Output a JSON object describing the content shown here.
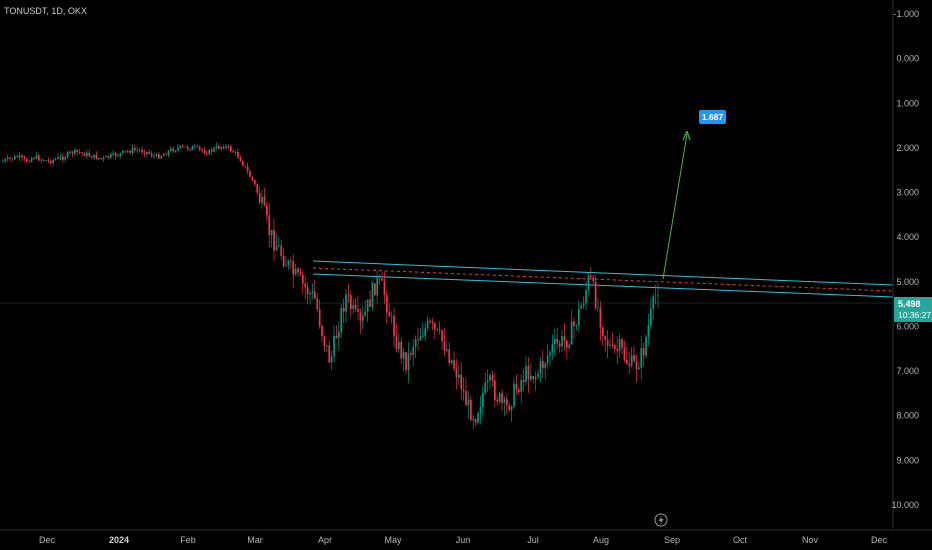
{
  "header": {
    "symbol": "TONUSDT, 1D, OKX"
  },
  "chart_data": {
    "type": "candlestick",
    "y_axis": {
      "ticks": [
        "-1.000",
        "0.000",
        "1.000",
        "2.000",
        "3.000",
        "4.000",
        "5.000",
        "6.000",
        "7.000",
        "8.000",
        "9.000",
        "10.000"
      ],
      "range": [
        -1.0,
        10.0
      ],
      "inverted": true
    },
    "x_axis": {
      "ticks": [
        {
          "label": "Dec",
          "bold": false
        },
        {
          "label": "2024",
          "bold": true
        },
        {
          "label": "Feb",
          "bold": false
        },
        {
          "label": "Mar",
          "bold": false
        },
        {
          "label": "Apr",
          "bold": false
        },
        {
          "label": "May",
          "bold": false
        },
        {
          "label": "Jun",
          "bold": false
        },
        {
          "label": "Jul",
          "bold": false
        },
        {
          "label": "Aug",
          "bold": false
        },
        {
          "label": "Sep",
          "bold": false
        },
        {
          "label": "Oct",
          "bold": false
        },
        {
          "label": "Nov",
          "bold": false
        },
        {
          "label": "Dec",
          "bold": false
        }
      ]
    },
    "price_path": [
      2.3,
      2.25,
      2.2,
      2.3,
      2.2,
      2.25,
      2.3,
      2.25,
      2.2,
      2.1,
      2.1,
      2.15,
      2.2,
      2.25,
      2.2,
      2.15,
      2.1,
      2.05,
      2.05,
      2.1,
      2.2,
      2.15,
      2.05,
      2.0,
      2.0,
      2.0,
      2.05,
      2.1,
      2.0,
      1.95,
      2.05,
      2.2,
      2.5,
      2.8,
      3.3,
      3.9,
      4.2,
      4.5,
      4.8,
      5.0,
      5.2,
      5.4,
      6.2,
      6.8,
      6.0,
      5.3,
      5.7,
      6.0,
      5.5,
      5.0,
      5.2,
      5.9,
      6.5,
      6.8,
      6.3,
      6.1,
      6.0,
      6.2,
      6.4,
      6.8,
      7.2,
      7.8,
      8.0,
      7.5,
      7.3,
      7.6,
      7.9,
      7.5,
      7.2,
      7.0,
      7.1,
      6.8,
      6.5,
      6.4,
      6.3,
      6.0,
      5.5,
      4.9,
      5.5,
      6.2,
      6.6,
      6.5,
      6.8,
      6.9,
      6.6,
      5.8,
      5.1
    ],
    "legend_note": "price-axis values increase downward (inverted scale)",
    "last_price": {
      "value": 5.498,
      "label": "5.498",
      "countdown": "10:36:27"
    },
    "target": {
      "value": 1.687,
      "label": "1.687"
    },
    "colors": {
      "up": "#089981",
      "down": "#f23645",
      "channel": "#26c6da",
      "dashed": "#f23645",
      "arrow": "#4caf50",
      "target_badge": "#2196f3",
      "price_badge": "#26a69a"
    }
  },
  "footer": {
    "event_icon": "lightning-icon"
  }
}
